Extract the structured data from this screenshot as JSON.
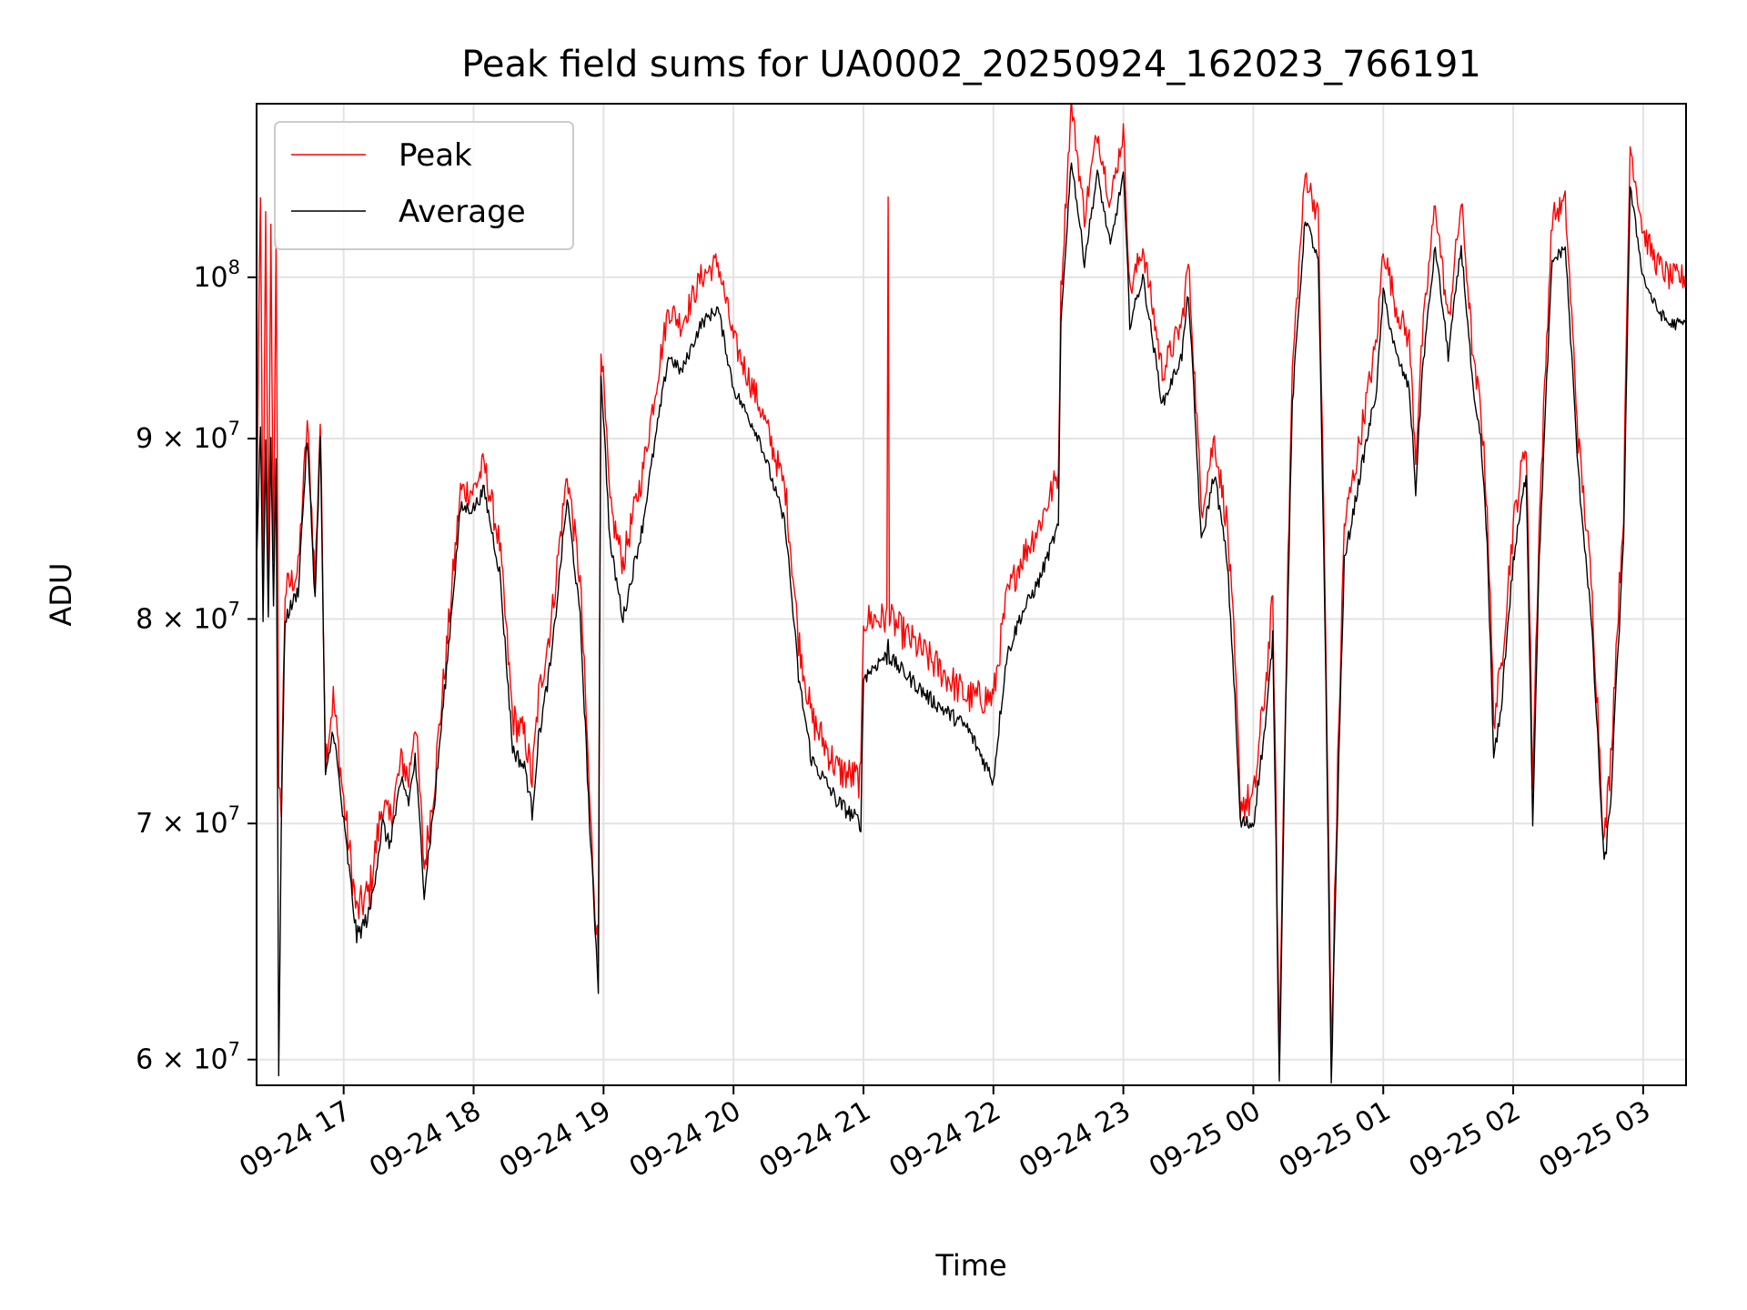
{
  "chart_data": {
    "type": "line",
    "title": "Peak field sums for UA0002_20250924_162023_766191",
    "xlabel": "Time",
    "ylabel": "ADU",
    "yscale": "log",
    "ylim": [
      59000000,
      112000000
    ],
    "xlim": [
      16.33,
      27.33
    ],
    "grid": true,
    "legend_position": "top-left",
    "x_ticks": [
      {
        "x": 17,
        "label": "09-24 17"
      },
      {
        "x": 18,
        "label": "09-24 18"
      },
      {
        "x": 19,
        "label": "09-24 19"
      },
      {
        "x": 20,
        "label": "09-24 20"
      },
      {
        "x": 21,
        "label": "09-24 21"
      },
      {
        "x": 22,
        "label": "09-24 22"
      },
      {
        "x": 23,
        "label": "09-24 23"
      },
      {
        "x": 24,
        "label": "09-25 00"
      },
      {
        "x": 25,
        "label": "09-25 01"
      },
      {
        "x": 26,
        "label": "09-25 02"
      },
      {
        "x": 27,
        "label": "09-25 03"
      }
    ],
    "y_ticks": [
      {
        "y": 60000000,
        "mantissa": "6",
        "exp": "7"
      },
      {
        "y": 70000000,
        "mantissa": "7",
        "exp": "7"
      },
      {
        "y": 80000000,
        "mantissa": "8",
        "exp": "7"
      },
      {
        "y": 90000000,
        "mantissa": "9",
        "exp": "7"
      },
      {
        "y": 100000000,
        "mantissa": "",
        "exp": "8"
      }
    ],
    "series": [
      {
        "name": "Peak",
        "color": "#ff0000",
        "points": [
          [
            16.33,
            85.5
          ],
          [
            16.36,
            105
          ],
          [
            16.38,
            82
          ],
          [
            16.4,
            104
          ],
          [
            16.42,
            82
          ],
          [
            16.44,
            103
          ],
          [
            16.46,
            83
          ],
          [
            16.48,
            103
          ],
          [
            16.5,
            71
          ],
          [
            16.52,
            71
          ],
          [
            16.55,
            81.5
          ],
          [
            16.65,
            82.5
          ],
          [
            16.72,
            91
          ],
          [
            16.78,
            82
          ],
          [
            16.82,
            91
          ],
          [
            16.86,
            73
          ],
          [
            16.92,
            76
          ],
          [
            17.0,
            71
          ],
          [
            17.1,
            66
          ],
          [
            17.2,
            67
          ],
          [
            17.3,
            71
          ],
          [
            17.35,
            70
          ],
          [
            17.45,
            73
          ],
          [
            17.5,
            72
          ],
          [
            17.55,
            75
          ],
          [
            17.62,
            68
          ],
          [
            17.7,
            72
          ],
          [
            17.8,
            79
          ],
          [
            17.9,
            87
          ],
          [
            18.0,
            87
          ],
          [
            18.08,
            88.5
          ],
          [
            18.2,
            84
          ],
          [
            18.3,
            75
          ],
          [
            18.4,
            74
          ],
          [
            18.45,
            72
          ],
          [
            18.5,
            76
          ],
          [
            18.6,
            80
          ],
          [
            18.72,
            88
          ],
          [
            18.82,
            82
          ],
          [
            18.9,
            70
          ],
          [
            18.96,
            64
          ],
          [
            18.98,
            96
          ],
          [
            19.05,
            86
          ],
          [
            19.15,
            83
          ],
          [
            19.3,
            88
          ],
          [
            19.5,
            98
          ],
          [
            19.6,
            97
          ],
          [
            19.75,
            100
          ],
          [
            19.88,
            101
          ],
          [
            20.0,
            96
          ],
          [
            20.2,
            92
          ],
          [
            20.4,
            87
          ],
          [
            20.5,
            79
          ],
          [
            20.6,
            75
          ],
          [
            20.8,
            72.5
          ],
          [
            20.98,
            72
          ],
          [
            21.0,
            80
          ],
          [
            21.15,
            80
          ],
          [
            21.18,
            80
          ],
          [
            21.19,
            105
          ],
          [
            21.2,
            80
          ],
          [
            21.5,
            78
          ],
          [
            21.8,
            76
          ],
          [
            22.0,
            76
          ],
          [
            22.1,
            81
          ],
          [
            22.2,
            83
          ],
          [
            22.35,
            85
          ],
          [
            22.5,
            88
          ],
          [
            22.52,
            99
          ],
          [
            22.6,
            112
          ],
          [
            22.7,
            104
          ],
          [
            22.8,
            110
          ],
          [
            22.9,
            105
          ],
          [
            23.0,
            110
          ],
          [
            23.05,
            99
          ],
          [
            23.15,
            102
          ],
          [
            23.3,
            94
          ],
          [
            23.45,
            97
          ],
          [
            23.5,
            101
          ],
          [
            23.6,
            86
          ],
          [
            23.7,
            90
          ],
          [
            23.8,
            85
          ],
          [
            23.85,
            79
          ],
          [
            23.9,
            71
          ],
          [
            24.0,
            71
          ],
          [
            24.1,
            77
          ],
          [
            24.15,
            81
          ],
          [
            24.2,
            60
          ],
          [
            24.3,
            94
          ],
          [
            24.4,
            107
          ],
          [
            24.5,
            104
          ],
          [
            24.55,
            82
          ],
          [
            24.6,
            60
          ],
          [
            24.7,
            85
          ],
          [
            24.8,
            89
          ],
          [
            24.95,
            96
          ],
          [
            25.0,
            102
          ],
          [
            25.1,
            98
          ],
          [
            25.2,
            96
          ],
          [
            25.25,
            89
          ],
          [
            25.3,
            96
          ],
          [
            25.4,
            105
          ],
          [
            25.5,
            97
          ],
          [
            25.6,
            105
          ],
          [
            25.7,
            94
          ],
          [
            25.75,
            92
          ],
          [
            25.8,
            86
          ],
          [
            25.85,
            75
          ],
          [
            25.9,
            77
          ],
          [
            26.0,
            85
          ],
          [
            26.1,
            90
          ],
          [
            26.15,
            72
          ],
          [
            26.2,
            85
          ],
          [
            26.3,
            104
          ],
          [
            26.4,
            105
          ],
          [
            26.5,
            90
          ],
          [
            26.6,
            82
          ],
          [
            26.7,
            69
          ],
          [
            26.75,
            73
          ],
          [
            26.85,
            86
          ],
          [
            26.9,
            109
          ],
          [
            27.0,
            103
          ],
          [
            27.1,
            101
          ],
          [
            27.2,
            100
          ],
          [
            27.33,
            100
          ]
        ]
      },
      {
        "name": "Average",
        "color": "#000000",
        "points": [
          [
            16.33,
            83
          ],
          [
            16.36,
            91
          ],
          [
            16.38,
            80
          ],
          [
            16.4,
            90
          ],
          [
            16.42,
            80
          ],
          [
            16.44,
            90
          ],
          [
            16.46,
            81
          ],
          [
            16.48,
            89
          ],
          [
            16.5,
            59
          ],
          [
            16.52,
            70
          ],
          [
            16.55,
            80
          ],
          [
            16.65,
            81.5
          ],
          [
            16.72,
            90
          ],
          [
            16.78,
            81
          ],
          [
            16.82,
            90
          ],
          [
            16.86,
            72
          ],
          [
            16.92,
            74.5
          ],
          [
            17.0,
            70
          ],
          [
            17.1,
            65
          ],
          [
            17.2,
            66
          ],
          [
            17.3,
            70
          ],
          [
            17.35,
            69
          ],
          [
            17.45,
            72
          ],
          [
            17.5,
            71
          ],
          [
            17.55,
            73
          ],
          [
            17.62,
            67
          ],
          [
            17.7,
            71
          ],
          [
            17.8,
            78
          ],
          [
            17.9,
            86
          ],
          [
            18.0,
            86
          ],
          [
            18.08,
            87
          ],
          [
            18.2,
            82.5
          ],
          [
            18.3,
            73.5
          ],
          [
            18.4,
            72.5
          ],
          [
            18.45,
            70.5
          ],
          [
            18.5,
            74
          ],
          [
            18.6,
            78
          ],
          [
            18.72,
            86.5
          ],
          [
            18.82,
            80
          ],
          [
            18.9,
            69
          ],
          [
            18.96,
            63
          ],
          [
            18.98,
            94
          ],
          [
            19.05,
            84
          ],
          [
            19.15,
            80
          ],
          [
            19.3,
            85
          ],
          [
            19.5,
            95
          ],
          [
            19.6,
            94
          ],
          [
            19.75,
            97
          ],
          [
            19.88,
            98
          ],
          [
            20.0,
            93
          ],
          [
            20.2,
            90
          ],
          [
            20.4,
            85
          ],
          [
            20.5,
            77
          ],
          [
            20.6,
            73
          ],
          [
            20.8,
            71
          ],
          [
            20.98,
            70
          ],
          [
            21.0,
            77
          ],
          [
            21.15,
            78
          ],
          [
            21.18,
            78
          ],
          [
            21.19,
            79
          ],
          [
            21.2,
            78
          ],
          [
            21.5,
            76
          ],
          [
            21.8,
            74.5
          ],
          [
            22.0,
            72
          ],
          [
            22.1,
            78
          ],
          [
            22.2,
            80
          ],
          [
            22.35,
            82
          ],
          [
            22.5,
            85
          ],
          [
            22.52,
            97
          ],
          [
            22.6,
            108
          ],
          [
            22.7,
            101
          ],
          [
            22.8,
            107
          ],
          [
            22.9,
            102
          ],
          [
            23.0,
            107
          ],
          [
            23.05,
            97
          ],
          [
            23.15,
            100
          ],
          [
            23.3,
            92
          ],
          [
            23.45,
            95
          ],
          [
            23.5,
            99
          ],
          [
            23.6,
            84
          ],
          [
            23.7,
            88
          ],
          [
            23.8,
            83
          ],
          [
            23.85,
            77
          ],
          [
            23.9,
            70
          ],
          [
            24.0,
            70
          ],
          [
            24.1,
            75
          ],
          [
            24.15,
            79
          ],
          [
            24.2,
            59
          ],
          [
            24.3,
            92
          ],
          [
            24.4,
            104
          ],
          [
            24.5,
            101
          ],
          [
            24.55,
            80
          ],
          [
            24.6,
            59
          ],
          [
            24.7,
            83
          ],
          [
            24.8,
            87
          ],
          [
            24.95,
            93
          ],
          [
            25.0,
            99
          ],
          [
            25.1,
            95
          ],
          [
            25.2,
            93
          ],
          [
            25.25,
            87
          ],
          [
            25.3,
            94
          ],
          [
            25.4,
            102
          ],
          [
            25.5,
            95
          ],
          [
            25.6,
            102
          ],
          [
            25.7,
            92
          ],
          [
            25.75,
            90
          ],
          [
            25.8,
            84
          ],
          [
            25.85,
            73
          ],
          [
            25.9,
            75
          ],
          [
            26.0,
            83
          ],
          [
            26.1,
            88
          ],
          [
            26.15,
            70
          ],
          [
            26.2,
            83
          ],
          [
            26.3,
            101
          ],
          [
            26.4,
            102
          ],
          [
            26.5,
            88
          ],
          [
            26.6,
            80
          ],
          [
            26.7,
            68
          ],
          [
            26.75,
            71
          ],
          [
            26.85,
            84
          ],
          [
            26.9,
            106
          ],
          [
            27.0,
            100
          ],
          [
            27.1,
            98
          ],
          [
            27.2,
            97
          ],
          [
            27.33,
            97
          ]
        ]
      }
    ],
    "y_unit_scale": 1000000
  }
}
